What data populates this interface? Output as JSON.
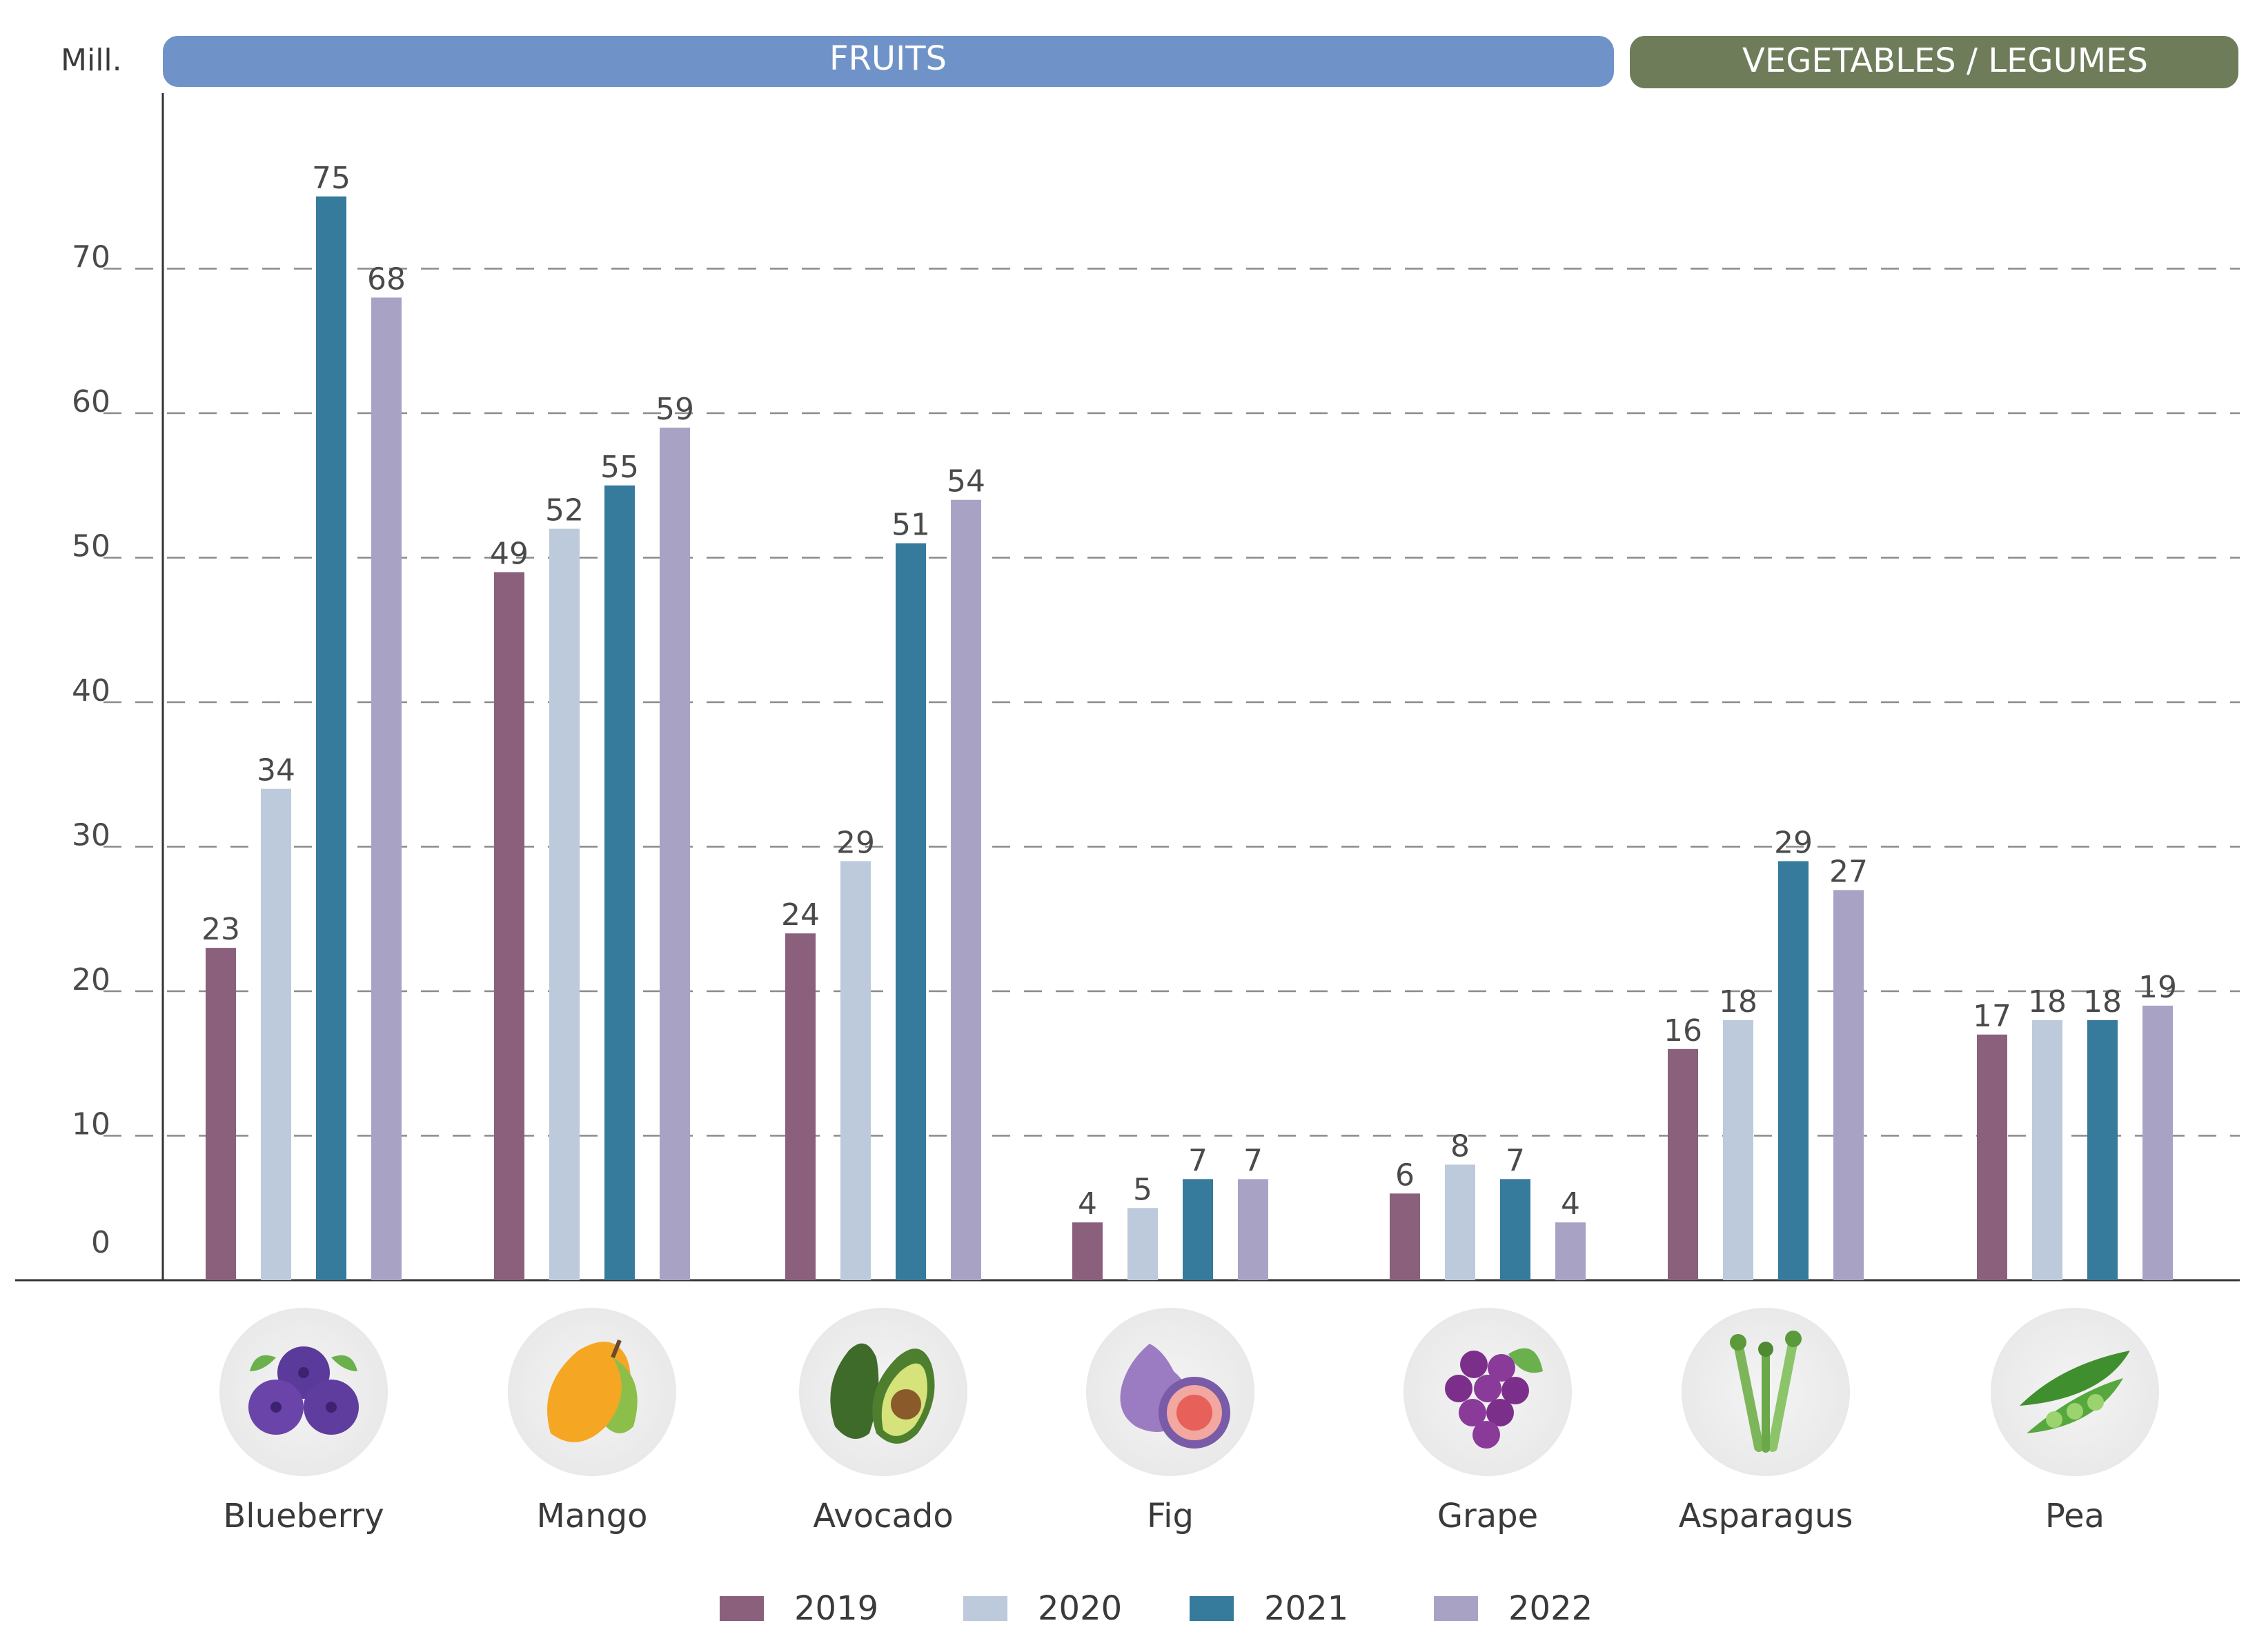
{
  "chart_data": {
    "type": "bar",
    "unit_label": "Mill.",
    "groups": [
      {
        "label": "FRUITS",
        "color": "#6f93c8",
        "categories": [
          "Blueberry",
          "Mango",
          "Avocado",
          "Fig",
          "Grape"
        ]
      },
      {
        "label": "VEGETABLES / LEGUMES",
        "color": "#6e7c59",
        "categories": [
          "Asparagus",
          "Pea"
        ]
      }
    ],
    "categories": [
      "Blueberry",
      "Mango",
      "Avocado",
      "Fig",
      "Grape",
      "Asparagus",
      "Pea"
    ],
    "icons": [
      "blueberry-icon",
      "mango-icon",
      "avocado-icon",
      "fig-icon",
      "grape-icon",
      "asparagus-icon",
      "pea-icon"
    ],
    "series": [
      {
        "name": "2019",
        "color": "#8a607d",
        "values": [
          23,
          49,
          24,
          4,
          6,
          16,
          17
        ]
      },
      {
        "name": "2020",
        "color": "#bccadb",
        "values": [
          34,
          52,
          29,
          5,
          8,
          18,
          18
        ]
      },
      {
        "name": "2021",
        "color": "#367a9c",
        "values": [
          75,
          55,
          51,
          7,
          7,
          29,
          18
        ]
      },
      {
        "name": "2022",
        "color": "#a8a3c5",
        "values": [
          68,
          59,
          54,
          7,
          4,
          27,
          19
        ]
      }
    ],
    "ylim": [
      0,
      80
    ],
    "yticks": [
      0,
      10,
      20,
      30,
      40,
      50,
      60,
      70
    ],
    "grid": true,
    "legend_position": "bottom-center",
    "title": "",
    "xlabel": "",
    "ylabel": "Mill."
  }
}
